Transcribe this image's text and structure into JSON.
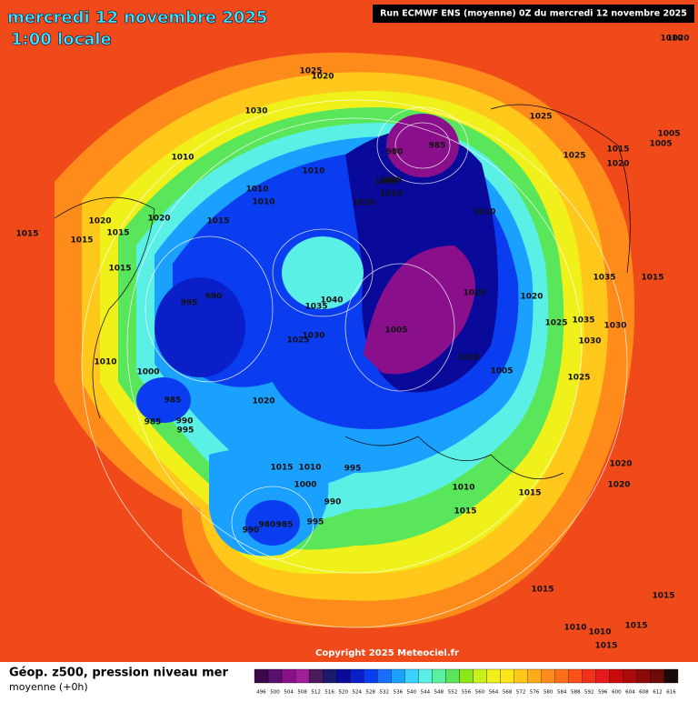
{
  "header": {
    "title": "mercredi 12 novembre 2025",
    "subtitle": "1:00 locale",
    "run": "Run ECMWF ENS (moyenne) 0Z du mercredi 12 novembre 2025"
  },
  "footer": {
    "copyright": "Copyright 2025 Meteociel.fr",
    "caption": "Géop. z500, pression niveau mer",
    "caption2": "moyenne  (+0h)"
  },
  "legend": {
    "values": [
      496,
      500,
      504,
      508,
      512,
      516,
      520,
      524,
      528,
      532,
      536,
      540,
      544,
      548,
      552,
      556,
      560,
      564,
      568,
      572,
      576,
      580,
      584,
      588,
      592,
      596,
      600,
      604,
      608,
      612,
      616
    ],
    "colors": [
      "#3c0a4a",
      "#5a0f6e",
      "#8a0f8a",
      "#a01f9a",
      "#4a1a5a",
      "#1a1a6e",
      "#0a0a9a",
      "#0a1fc8",
      "#0a3cf0",
      "#1a6eff",
      "#1aa0ff",
      "#3cd2ff",
      "#5af0e6",
      "#5af0a0",
      "#5ae65a",
      "#8ce61a",
      "#c8f01a",
      "#f0f01a",
      "#ffe61a",
      "#ffc81a",
      "#ffaa1a",
      "#ff8c1a",
      "#ff6e1a",
      "#ff501a",
      "#f0321a",
      "#e61a1a",
      "#c80a0a",
      "#aa0a0a",
      "#8c0a0a",
      "#6e0a0a",
      "#1a0a0a"
    ]
  },
  "isobar_labels": [
    "1025",
    "1020",
    "1030",
    "980",
    "985",
    "1010",
    "1005",
    "1010",
    "1020",
    "1025",
    "1015",
    "1005",
    "1010",
    "1010",
    "1005",
    "1010",
    "1015",
    "1025",
    "1020",
    "1020",
    "1020",
    "1015",
    "1015",
    "1015",
    "990",
    "995",
    "1040",
    "1035",
    "1025",
    "1030",
    "1005",
    "1020",
    "1010",
    "1005",
    "1035",
    "1030",
    "1030",
    "1025",
    "1025",
    "1020",
    "1010",
    "1000",
    "985",
    "985",
    "990",
    "995",
    "1020",
    "1015",
    "1010",
    "1005",
    "995",
    "1000",
    "990",
    "990",
    "980",
    "985",
    "995",
    "1010",
    "1015",
    "1015",
    "1020",
    "1020",
    "1015",
    "1015",
    "1010",
    "1010",
    "1015",
    "1010",
    "1010",
    "1015",
    "1035",
    "1015",
    "1020",
    "1015"
  ]
}
